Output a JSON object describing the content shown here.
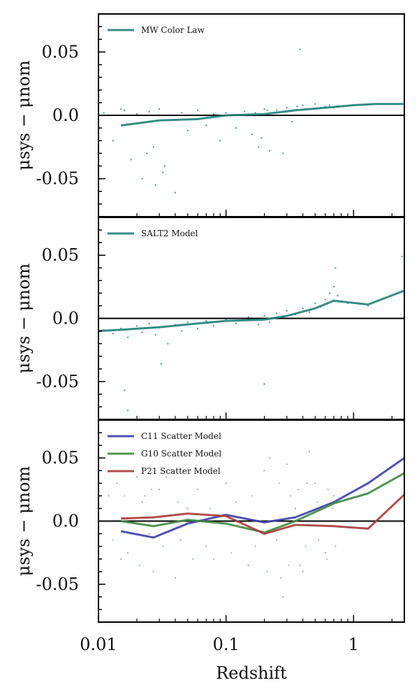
{
  "chart_data": [
    {
      "type": "scatter",
      "panel": "top",
      "ylabel": "μsys − μnom",
      "xlabel": "",
      "xscale": "log",
      "xlim": [
        0.01,
        2.5
      ],
      "ylim": [
        -0.08,
        0.08
      ],
      "yticks": [
        0.05,
        0.0,
        -0.05
      ],
      "ytick_labels": [
        "0.05",
        "0.0",
        "-0.05"
      ],
      "zero_line": true,
      "series": [
        {
          "name": "MW Color Law",
          "color": "#1f7f7a",
          "line": {
            "x": [
              0.015,
              0.03,
              0.06,
              0.1,
              0.2,
              0.35,
              0.6,
              1.0,
              1.5,
              2.5
            ],
            "y": [
              -0.008,
              -0.004,
              -0.003,
              0.0,
              0.001,
              0.004,
              0.006,
              0.008,
              0.009,
              0.009
            ]
          },
          "points": {
            "x": [
              0.011,
              0.013,
              0.016,
              0.018,
              0.02,
              0.022,
              0.025,
              0.027,
              0.03,
              0.033,
              0.036,
              0.04,
              0.045,
              0.05,
              0.06,
              0.07,
              0.08,
              0.09,
              0.1,
              0.12,
              0.14,
              0.16,
              0.18,
              0.2,
              0.22,
              0.25,
              0.28,
              0.3,
              0.33,
              0.36,
              0.4,
              0.45,
              0.5,
              0.55,
              0.6,
              0.65,
              0.7,
              0.75,
              0.38,
              0.032,
              0.015,
              0.024,
              0.028,
              0.19,
              0.17,
              0.21
            ],
            "y": [
              0.002,
              -0.02,
              0.004,
              -0.035,
              0.001,
              -0.05,
              0.003,
              -0.025,
              0.005,
              -0.04,
              0.0,
              -0.061,
              0.002,
              -0.012,
              0.004,
              -0.008,
              0.001,
              -0.02,
              0.002,
              -0.01,
              0.003,
              -0.015,
              -0.025,
              0.005,
              -0.028,
              0.004,
              -0.03,
              0.006,
              -0.005,
              0.007,
              0.008,
              0.005,
              0.009,
              0.006,
              0.007,
              0.008,
              0.006,
              0.007,
              0.052,
              -0.045,
              0.005,
              -0.03,
              -0.055,
              -0.018,
              0.002,
              0.004
            ]
          }
        }
      ]
    },
    {
      "type": "scatter",
      "panel": "middle",
      "ylabel": "μsys − μnom",
      "xlabel": "",
      "xscale": "log",
      "xlim": [
        0.01,
        2.5
      ],
      "ylim": [
        -0.08,
        0.08
      ],
      "yticks": [
        0.05,
        0.0,
        -0.05
      ],
      "ytick_labels": [
        "0.05",
        "0.0",
        "-0.05"
      ],
      "zero_line": true,
      "series": [
        {
          "name": "SALT2 Model",
          "color": "#1f7f7a",
          "line": {
            "x": [
              0.01,
              0.015,
              0.03,
              0.06,
              0.1,
              0.2,
              0.3,
              0.5,
              0.7,
              1.3,
              2.5
            ],
            "y": [
              -0.01,
              -0.009,
              -0.007,
              -0.004,
              -0.002,
              -0.001,
              0.002,
              0.008,
              0.014,
              0.011,
              0.022
            ]
          },
          "points": {
            "x": [
              0.011,
              0.013,
              0.015,
              0.017,
              0.02,
              0.022,
              0.025,
              0.028,
              0.03,
              0.035,
              0.04,
              0.045,
              0.05,
              0.06,
              0.07,
              0.08,
              0.1,
              0.12,
              0.15,
              0.18,
              0.2,
              0.22,
              0.25,
              0.28,
              0.3,
              0.35,
              0.4,
              0.45,
              0.5,
              0.55,
              0.6,
              0.65,
              0.7,
              0.72,
              0.75,
              0.9,
              1.3,
              2.4,
              0.016,
              0.017,
              0.2,
              0.031
            ],
            "y": [
              -0.009,
              -0.012,
              -0.008,
              -0.015,
              -0.006,
              -0.011,
              -0.004,
              -0.013,
              -0.007,
              -0.02,
              -0.005,
              -0.01,
              -0.003,
              -0.008,
              -0.002,
              -0.006,
              -0.001,
              -0.004,
              0.001,
              -0.005,
              0.002,
              -0.003,
              0.004,
              0.001,
              0.006,
              0.003,
              0.008,
              0.005,
              0.012,
              0.009,
              0.015,
              0.02,
              0.025,
              0.04,
              0.018,
              0.012,
              0.01,
              0.049,
              -0.057,
              -0.073,
              -0.052,
              -0.036
            ]
          }
        }
      ]
    },
    {
      "type": "scatter",
      "panel": "bottom",
      "ylabel": "μsys − μnom",
      "xlabel": "Redshift",
      "xscale": "log",
      "xlim": [
        0.01,
        2.5
      ],
      "ylim": [
        -0.08,
        0.08
      ],
      "xticks": [
        0.01,
        0.1,
        1
      ],
      "xtick_labels": [
        "0.01",
        "0.1",
        "1"
      ],
      "yticks": [
        0.05,
        0.0,
        -0.05
      ],
      "ytick_labels": [
        "0.05",
        "0.0",
        "-0.05"
      ],
      "zero_line": true,
      "series": [
        {
          "name": "C11 Scatter Model",
          "color": "#3a3ea8",
          "line": {
            "x": [
              0.015,
              0.027,
              0.05,
              0.1,
              0.2,
              0.35,
              0.7,
              1.3,
              2.5
            ],
            "y": [
              -0.008,
              -0.013,
              -0.002,
              0.005,
              -0.001,
              0.003,
              0.015,
              0.03,
              0.05
            ]
          },
          "points": {
            "x": [
              0.012,
              0.015,
              0.02,
              0.025,
              0.03,
              0.04,
              0.05,
              0.07,
              0.1,
              0.15,
              0.2,
              0.25,
              0.3,
              0.35,
              0.4,
              0.5,
              0.6,
              0.7,
              0.022,
              0.28,
              0.45
            ],
            "y": [
              0.02,
              -0.03,
              0.035,
              -0.01,
              0.025,
              -0.045,
              0.01,
              -0.02,
              0.03,
              -0.035,
              0.04,
              -0.015,
              0.045,
              0.01,
              -0.04,
              0.03,
              -0.025,
              0.02,
              0.015,
              -0.06,
              0.055
            ]
          }
        },
        {
          "name": "G10 Scatter Model",
          "color": "#3f8a3f",
          "line": {
            "x": [
              0.015,
              0.027,
              0.05,
              0.1,
              0.2,
              0.35,
              0.7,
              1.3,
              2.5
            ],
            "y": [
              0.0,
              -0.004,
              0.001,
              -0.002,
              -0.009,
              0.0,
              0.014,
              0.022,
              0.038
            ]
          },
          "points": {
            "x": [
              0.013,
              0.016,
              0.021,
              0.026,
              0.032,
              0.042,
              0.055,
              0.075,
              0.11,
              0.16,
              0.21,
              0.26,
              0.31,
              0.37,
              0.42,
              0.52,
              0.62,
              0.68
            ],
            "y": [
              -0.015,
              0.02,
              -0.035,
              0.025,
              -0.02,
              0.015,
              -0.03,
              0.01,
              -0.025,
              0.02,
              -0.04,
              0.03,
              -0.035,
              0.025,
              -0.02,
              0.015,
              -0.03,
              0.01
            ]
          }
        },
        {
          "name": "P21 Scatter Model",
          "color": "#a83a3a",
          "line": {
            "x": [
              0.015,
              0.027,
              0.05,
              0.1,
              0.2,
              0.35,
              0.7,
              1.3,
              2.5
            ],
            "y": [
              0.002,
              0.003,
              0.006,
              0.004,
              -0.01,
              -0.003,
              -0.004,
              -0.006,
              0.021
            ]
          },
          "points": {
            "x": [
              0.014,
              0.017,
              0.023,
              0.027,
              0.034,
              0.044,
              0.06,
              0.08,
              0.12,
              0.17,
              0.22,
              0.27,
              0.32,
              0.38,
              0.43,
              0.53,
              0.63,
              0.72
            ],
            "y": [
              0.03,
              -0.025,
              0.02,
              -0.04,
              0.035,
              -0.015,
              0.025,
              -0.03,
              0.015,
              -0.02,
              0.05,
              -0.045,
              0.02,
              -0.035,
              0.03,
              -0.015,
              0.025,
              -0.02
            ]
          }
        }
      ]
    }
  ]
}
